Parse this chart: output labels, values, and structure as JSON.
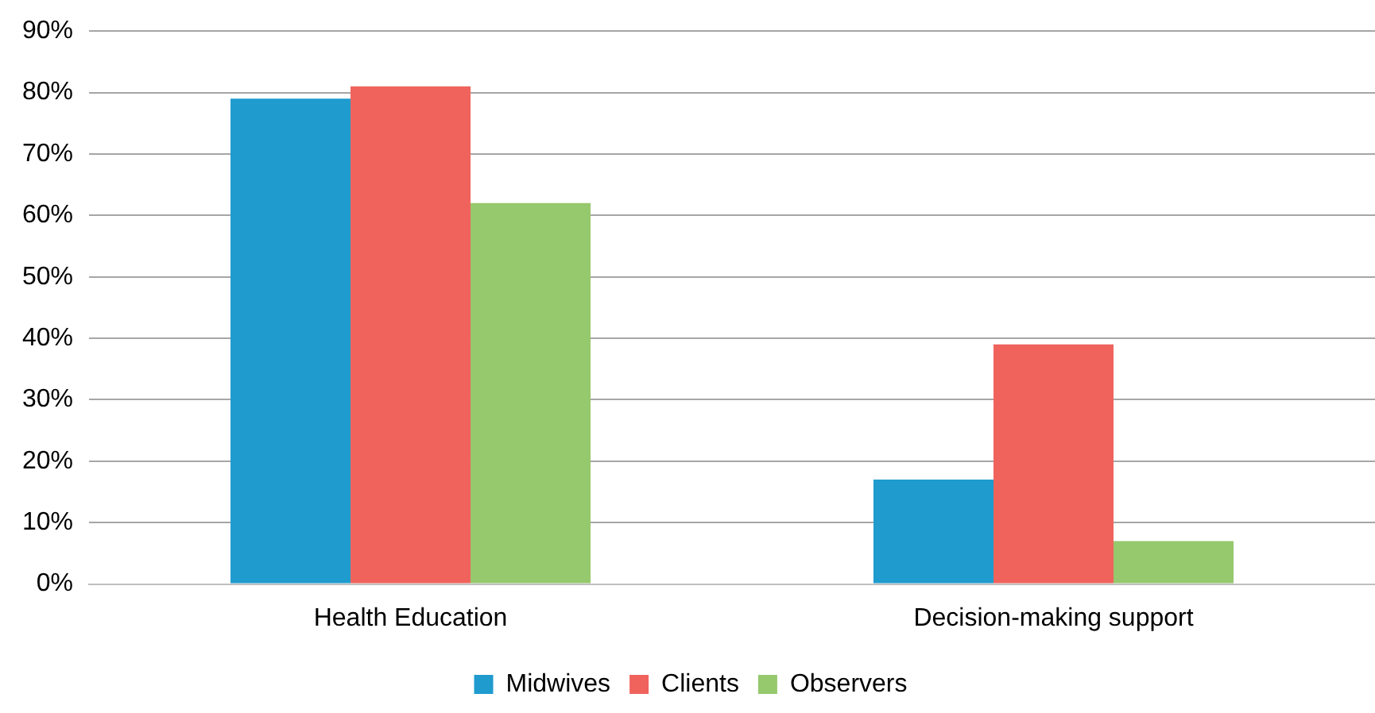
{
  "chart_data": {
    "type": "bar",
    "categories": [
      "Health Education",
      "Decision-making support"
    ],
    "series": [
      {
        "name": "Midwives",
        "color": "#1f9bce",
        "values": [
          79,
          17
        ]
      },
      {
        "name": "Clients",
        "color": "#f0635c",
        "values": [
          81,
          39
        ]
      },
      {
        "name": "Observers",
        "color": "#96c86e",
        "values": [
          62,
          7
        ]
      }
    ],
    "ylim": [
      0,
      90
    ],
    "yticks": [
      {
        "value": 0,
        "label": "0%"
      },
      {
        "value": 10,
        "label": "10%"
      },
      {
        "value": 20,
        "label": "20%"
      },
      {
        "value": 30,
        "label": "30%"
      },
      {
        "value": 40,
        "label": "40%"
      },
      {
        "value": 50,
        "label": "50%"
      },
      {
        "value": 60,
        "label": "60%"
      },
      {
        "value": 70,
        "label": "70%"
      },
      {
        "value": 80,
        "label": "80%"
      },
      {
        "value": 90,
        "label": "90%"
      }
    ],
    "grid": "y",
    "legend": "bottom"
  }
}
